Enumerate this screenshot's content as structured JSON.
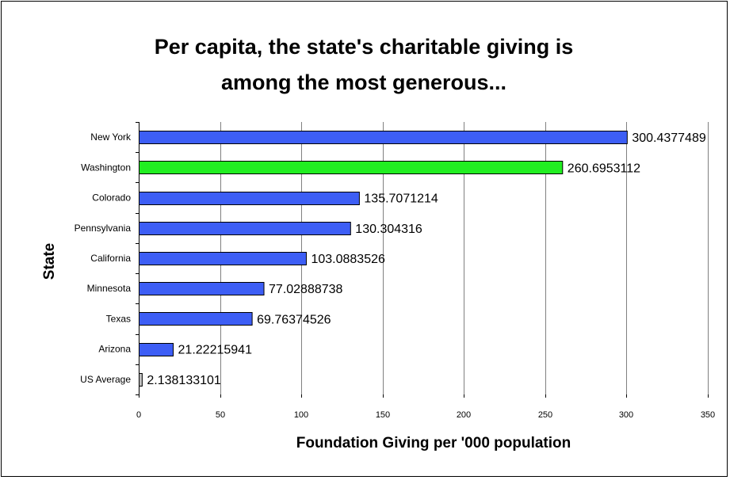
{
  "chart_data": {
    "type": "bar",
    "orientation": "horizontal",
    "title_lines": [
      "Per capita, the state's charitable giving is",
      "among the most generous..."
    ],
    "xlabel": "Foundation Giving per '000 population",
    "ylabel": "State",
    "xlim": [
      0,
      350
    ],
    "x_ticks": [
      "0",
      "50",
      "100",
      "150",
      "200",
      "250",
      "300",
      "350"
    ],
    "grid": "vertical",
    "legend": "none",
    "categories": [
      "New York",
      "Washington",
      "Colorado",
      "Pennsylvania",
      "California",
      "Minnesota",
      "Texas",
      "Arizona",
      "US Average"
    ],
    "values": [
      300.4377489,
      260.6953112,
      135.7071214,
      130.304316,
      103.0883526,
      77.02888738,
      69.76374526,
      21.22215941,
      2.138133101
    ],
    "data_labels": [
      "300.4377489",
      "260.6953112",
      "135.7071214",
      "130.304316",
      "103.0883526",
      "77.02888738",
      "69.76374526",
      "21.22215941",
      "2.138133101"
    ],
    "bar_colors": [
      "#3d5ef5",
      "#22ee22",
      "#3d5ef5",
      "#3d5ef5",
      "#3d5ef5",
      "#3d5ef5",
      "#3d5ef5",
      "#3d5ef5",
      "#c0c0c0"
    ],
    "colors": {
      "default_bar": "#3d5ef5",
      "highlight_bar": "#22ee22",
      "average_bar": "#c0c0c0",
      "bar_outline": "#000000",
      "gridline": "#808080"
    }
  }
}
